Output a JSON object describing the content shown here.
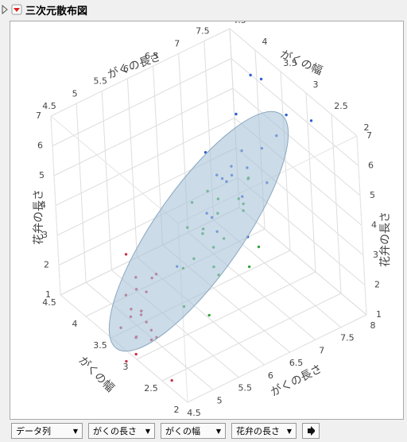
{
  "header": {
    "title": "三次元散布図"
  },
  "chart_data": {
    "type": "scatter3d",
    "xlabel": "がくの長さ",
    "ylabel": "がくの幅",
    "zlabel": "花弁の長さ",
    "xlim": [
      4.5,
      8
    ],
    "xticks": [
      4.5,
      5,
      5.5,
      6,
      6.5,
      7,
      7.5,
      8
    ],
    "ylim": [
      2,
      4.5
    ],
    "yticks": [
      2,
      2.5,
      3,
      3.5,
      4,
      4.5
    ],
    "zlim": [
      1,
      7
    ],
    "zticks": [
      1,
      2,
      3,
      4,
      5,
      6,
      7
    ],
    "grid": true,
    "series": [
      {
        "color": "#c8314a",
        "x": [
          5.1,
          4.9,
          4.7,
          4.6,
          5.0,
          5.4,
          4.6,
          5.0,
          4.4,
          4.9,
          5.4,
          4.8,
          4.8,
          4.3,
          5.8,
          5.7,
          5.4,
          5.1,
          5.7,
          5.1,
          4.5,
          5.0
        ],
        "y": [
          3.5,
          3.0,
          3.2,
          3.1,
          3.6,
          3.9,
          3.4,
          3.4,
          2.9,
          3.1,
          3.7,
          3.4,
          3.0,
          3.0,
          4.0,
          4.4,
          3.9,
          3.5,
          3.8,
          3.8,
          2.3,
          3.3
        ],
        "z": [
          1.4,
          1.4,
          1.3,
          1.5,
          1.4,
          1.7,
          1.4,
          1.5,
          1.4,
          1.5,
          1.5,
          1.6,
          1.4,
          1.1,
          1.2,
          1.5,
          1.3,
          1.4,
          1.7,
          1.5,
          1.3,
          1.4
        ]
      },
      {
        "color": "#33a33a",
        "x": [
          7.0,
          6.4,
          6.9,
          5.5,
          6.5,
          5.7,
          6.3,
          4.9,
          6.6,
          5.2,
          5.0,
          5.9,
          6.0,
          6.1,
          5.6,
          6.7,
          5.6,
          5.8,
          6.2,
          5.6,
          5.9,
          6.1
        ],
        "y": [
          3.2,
          3.2,
          3.1,
          2.3,
          2.8,
          2.8,
          3.3,
          2.4,
          2.9,
          2.7,
          2.0,
          3.0,
          2.2,
          2.9,
          2.9,
          3.1,
          3.0,
          2.7,
          2.2,
          2.5,
          3.2,
          2.8
        ],
        "z": [
          4.7,
          4.5,
          4.9,
          4.0,
          4.6,
          4.5,
          4.7,
          3.3,
          4.6,
          3.9,
          3.5,
          4.2,
          4.0,
          4.7,
          3.6,
          4.4,
          4.5,
          4.1,
          4.5,
          3.9,
          4.8,
          4.0
        ]
      },
      {
        "color": "#2d5fd0",
        "x": [
          6.3,
          5.8,
          7.1,
          6.3,
          6.5,
          7.6,
          4.9,
          7.3,
          6.7,
          7.2,
          6.5,
          6.4,
          6.8,
          5.7,
          5.8,
          6.4,
          6.5,
          7.7,
          7.7,
          6.0,
          6.9,
          7.9
        ],
        "y": [
          3.3,
          2.7,
          3.0,
          2.9,
          3.0,
          3.0,
          2.5,
          2.9,
          2.5,
          3.6,
          3.2,
          2.7,
          3.0,
          2.5,
          2.8,
          3.2,
          3.0,
          3.8,
          2.6,
          2.2,
          3.2,
          3.8
        ],
        "z": [
          6.0,
          5.1,
          5.9,
          5.6,
          5.8,
          6.6,
          4.5,
          6.3,
          5.8,
          6.1,
          5.1,
          5.3,
          5.5,
          5.0,
          5.1,
          5.3,
          5.5,
          6.7,
          6.9,
          5.0,
          5.7,
          6.4
        ]
      }
    ]
  },
  "controls": [
    "データ列",
    "がくの長さ",
    "がくの幅",
    "花弁の長さ"
  ]
}
